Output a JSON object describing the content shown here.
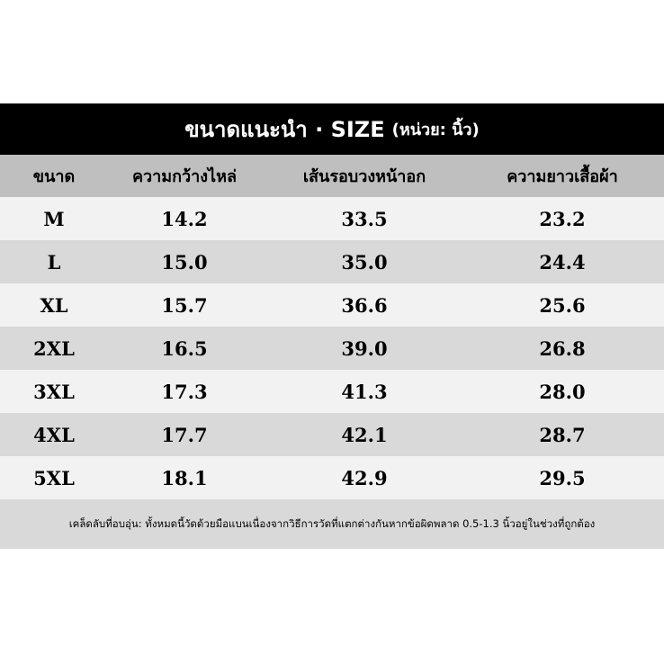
{
  "title": {
    "main": "ขนาดแนะนำ · SIZE",
    "unit": "(หน่วย: นิ้ว)"
  },
  "columns": [
    "ขนาด",
    "ความกว้างไหล่",
    "เส้นรอบวงหน้าอก",
    "ความยาวเสื้อผ้า"
  ],
  "rows": [
    [
      "M",
      "14.2",
      "33.5",
      "23.2"
    ],
    [
      "L",
      "15.0",
      "35.0",
      "24.4"
    ],
    [
      "XL",
      "15.7",
      "36.6",
      "25.6"
    ],
    [
      "2XL",
      "16.5",
      "39.0",
      "26.8"
    ],
    [
      "3XL",
      "17.3",
      "41.3",
      "28.0"
    ],
    [
      "4XL",
      "17.7",
      "42.1",
      "28.7"
    ],
    [
      "5XL",
      "18.1",
      "42.9",
      "29.5"
    ]
  ],
  "footer": "เคล็ดลับที่อบอุ่น: ทั้งหมดนี้วัดด้วยมือแบนเนื่องจากวิธีการวัดที่แตกต่างกันหากข้อผิดพลาด 0.5-1.3 นิ้วอยู่ในช่วงที่ถูกต้อง"
}
